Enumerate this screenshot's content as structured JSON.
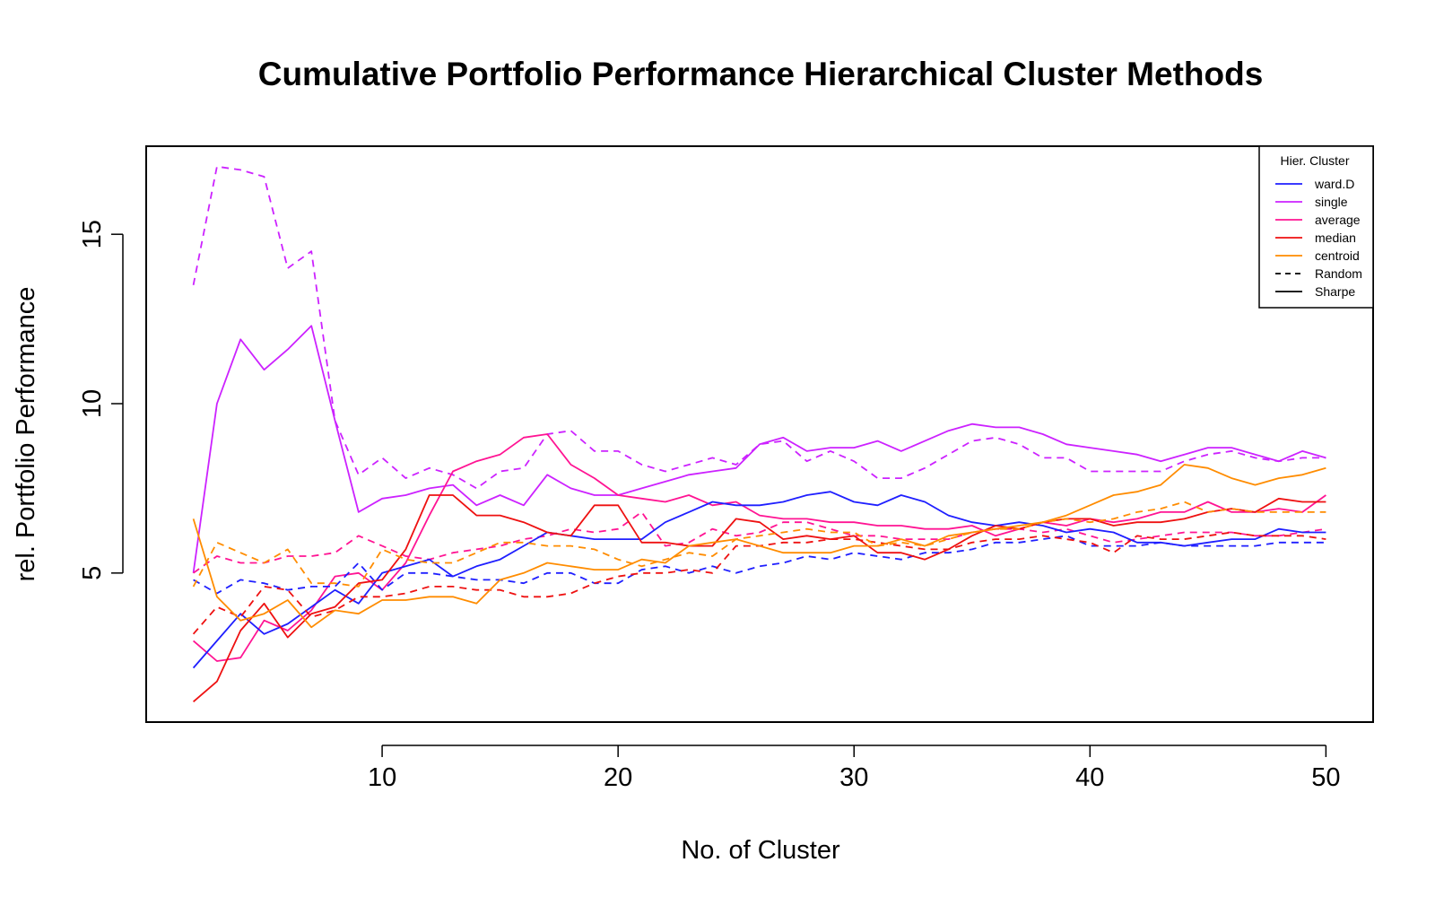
{
  "chart_data": {
    "type": "line",
    "title": "Cumulative Portfolio Performance Hierarchical Cluster Methods",
    "xlabel": "No. of Cluster",
    "ylabel": "rel. Portfolio Performance",
    "xlim": [
      0,
      52
    ],
    "ylim": [
      0.6,
      17.6
    ],
    "xticks": [
      10,
      20,
      30,
      40,
      50
    ],
    "yticks": [
      5,
      10,
      15
    ],
    "grid": false,
    "legend": {
      "title": "Hier. Cluster",
      "position": "top-right",
      "entries": [
        {
          "label": "ward.D",
          "color": "#1f1fff",
          "dash": "solid"
        },
        {
          "label": "single",
          "color": "#cc22ff",
          "dash": "solid"
        },
        {
          "label": "average",
          "color": "#ff1493",
          "dash": "solid"
        },
        {
          "label": "median",
          "color": "#ee1111",
          "dash": "solid"
        },
        {
          "label": "centroid",
          "color": "#ff8c00",
          "dash": "solid"
        },
        {
          "label": "Random",
          "color": "#000000",
          "dash": "dashed"
        },
        {
          "label": "Sharpe",
          "color": "#000000",
          "dash": "solid"
        }
      ]
    },
    "x": [
      2,
      3,
      4,
      5,
      6,
      7,
      8,
      9,
      10,
      11,
      12,
      13,
      14,
      15,
      16,
      17,
      18,
      19,
      20,
      21,
      22,
      23,
      24,
      25,
      26,
      27,
      28,
      29,
      30,
      31,
      32,
      33,
      34,
      35,
      36,
      37,
      38,
      39,
      40,
      41,
      42,
      43,
      44,
      45,
      46,
      47,
      48,
      49,
      50
    ],
    "series": [
      {
        "name": "single",
        "strategy": "Random",
        "color": "#cc22ff",
        "dash": "dashed",
        "values": [
          13.5,
          17.0,
          16.9,
          16.7,
          14.0,
          14.5,
          9.5,
          7.9,
          8.4,
          7.8,
          8.1,
          7.9,
          7.5,
          8.0,
          8.1,
          9.1,
          9.2,
          8.6,
          8.6,
          8.2,
          8.0,
          8.2,
          8.4,
          8.2,
          8.8,
          8.9,
          8.3,
          8.6,
          8.3,
          7.8,
          7.8,
          8.1,
          8.5,
          8.9,
          9.0,
          8.8,
          8.4,
          8.4,
          8.0,
          8.0,
          8.0,
          8.0,
          8.3,
          8.5,
          8.6,
          8.4,
          8.3,
          8.4,
          8.4
        ]
      },
      {
        "name": "single",
        "strategy": "Sharpe",
        "color": "#cc22ff",
        "dash": "solid",
        "values": [
          5.0,
          10.0,
          11.9,
          11.0,
          11.6,
          12.3,
          9.5,
          6.8,
          7.2,
          7.3,
          7.5,
          7.6,
          7.0,
          7.3,
          7.0,
          7.9,
          7.5,
          7.3,
          7.3,
          7.5,
          7.7,
          7.9,
          8.0,
          8.1,
          8.8,
          9.0,
          8.6,
          8.7,
          8.7,
          8.9,
          8.6,
          8.9,
          9.2,
          9.4,
          9.3,
          9.3,
          9.1,
          8.8,
          8.7,
          8.6,
          8.5,
          8.3,
          8.5,
          8.7,
          8.7,
          8.5,
          8.3,
          8.6,
          8.4
        ]
      },
      {
        "name": "average",
        "strategy": "Random",
        "color": "#ff1493",
        "dash": "dashed",
        "values": [
          5.0,
          5.5,
          5.3,
          5.3,
          5.5,
          5.5,
          5.6,
          6.1,
          5.8,
          5.5,
          5.4,
          5.6,
          5.7,
          5.8,
          6.0,
          6.1,
          6.3,
          6.2,
          6.3,
          6.8,
          5.8,
          5.9,
          6.3,
          6.1,
          6.2,
          6.5,
          6.5,
          6.3,
          6.1,
          6.1,
          6.0,
          6.0,
          6.0,
          6.2,
          6.3,
          6.3,
          6.2,
          6.3,
          6.1,
          5.9,
          6.0,
          6.1,
          6.2,
          6.2,
          6.2,
          6.1,
          6.1,
          6.2,
          6.3
        ]
      },
      {
        "name": "average",
        "strategy": "Sharpe",
        "color": "#ff1493",
        "dash": "solid",
        "values": [
          3.0,
          2.4,
          2.5,
          3.6,
          3.3,
          3.9,
          4.9,
          5.0,
          4.5,
          5.3,
          6.7,
          8.0,
          8.3,
          8.5,
          9.0,
          9.1,
          8.2,
          7.8,
          7.3,
          7.2,
          7.1,
          7.3,
          7.0,
          7.1,
          6.7,
          6.6,
          6.6,
          6.5,
          6.5,
          6.4,
          6.4,
          6.3,
          6.3,
          6.4,
          6.1,
          6.3,
          6.5,
          6.4,
          6.6,
          6.5,
          6.6,
          6.8,
          6.8,
          7.1,
          6.8,
          6.8,
          6.9,
          6.8,
          7.3
        ]
      },
      {
        "name": "ward.D",
        "strategy": "Random",
        "color": "#1f1fff",
        "dash": "dashed",
        "values": [
          4.8,
          4.4,
          4.8,
          4.7,
          4.5,
          4.6,
          4.6,
          5.3,
          4.5,
          5.0,
          5.0,
          4.9,
          4.8,
          4.8,
          4.7,
          5.0,
          5.0,
          4.7,
          4.7,
          5.1,
          5.2,
          5.0,
          5.2,
          5.0,
          5.2,
          5.3,
          5.5,
          5.4,
          5.6,
          5.5,
          5.4,
          5.6,
          5.6,
          5.7,
          5.9,
          5.9,
          6.0,
          6.1,
          5.8,
          5.8,
          5.8,
          5.9,
          5.8,
          5.8,
          5.8,
          5.8,
          5.9,
          5.9,
          5.9
        ]
      },
      {
        "name": "ward.D",
        "strategy": "Sharpe",
        "color": "#1f1fff",
        "dash": "solid",
        "values": [
          2.2,
          3.0,
          3.8,
          3.2,
          3.5,
          4.0,
          4.5,
          4.1,
          5.0,
          5.2,
          5.4,
          4.9,
          5.2,
          5.4,
          5.8,
          6.2,
          6.1,
          6.0,
          6.0,
          6.0,
          6.5,
          6.8,
          7.1,
          7.0,
          7.0,
          7.1,
          7.3,
          7.4,
          7.1,
          7.0,
          7.3,
          7.1,
          6.7,
          6.5,
          6.4,
          6.5,
          6.4,
          6.2,
          6.3,
          6.2,
          5.9,
          5.9,
          5.8,
          5.9,
          6.0,
          6.0,
          6.3,
          6.2,
          6.2
        ]
      },
      {
        "name": "median",
        "strategy": "Random",
        "color": "#ee1111",
        "dash": "dashed",
        "values": [
          3.2,
          4.0,
          3.7,
          4.6,
          4.5,
          3.7,
          3.9,
          4.3,
          4.3,
          4.4,
          4.6,
          4.6,
          4.5,
          4.5,
          4.3,
          4.3,
          4.4,
          4.7,
          4.9,
          5.0,
          5.0,
          5.1,
          5.0,
          5.8,
          5.8,
          5.9,
          5.9,
          6.0,
          6.0,
          5.9,
          5.8,
          5.7,
          5.7,
          5.9,
          6.0,
          6.0,
          6.1,
          6.0,
          5.9,
          5.6,
          6.1,
          6.0,
          6.0,
          6.1,
          6.2,
          6.1,
          6.1,
          6.1,
          6.0
        ]
      },
      {
        "name": "median",
        "strategy": "Sharpe",
        "color": "#ee1111",
        "dash": "solid",
        "values": [
          1.2,
          1.8,
          3.3,
          4.1,
          3.1,
          3.8,
          4.0,
          4.7,
          4.8,
          5.7,
          7.3,
          7.3,
          6.7,
          6.7,
          6.5,
          6.2,
          6.1,
          7.0,
          7.0,
          5.9,
          5.9,
          5.8,
          5.8,
          6.6,
          6.5,
          6.0,
          6.1,
          6.0,
          6.1,
          5.6,
          5.6,
          5.4,
          5.7,
          6.1,
          6.4,
          6.3,
          6.5,
          6.6,
          6.6,
          6.4,
          6.5,
          6.5,
          6.6,
          6.8,
          6.9,
          6.8,
          7.2,
          7.1,
          7.1
        ]
      },
      {
        "name": "centroid",
        "strategy": "Random",
        "color": "#ff8c00",
        "dash": "dashed",
        "values": [
          4.6,
          5.9,
          5.6,
          5.3,
          5.7,
          4.7,
          4.7,
          4.6,
          5.7,
          5.4,
          5.3,
          5.3,
          5.6,
          5.9,
          5.9,
          5.8,
          5.8,
          5.7,
          5.4,
          5.2,
          5.4,
          5.6,
          5.5,
          6.0,
          6.1,
          6.2,
          6.3,
          6.2,
          6.2,
          5.8,
          5.9,
          5.8,
          6.0,
          6.2,
          6.3,
          6.3,
          6.5,
          6.6,
          6.5,
          6.6,
          6.8,
          6.9,
          7.1,
          6.8,
          6.9,
          6.8,
          6.8,
          6.8,
          6.8
        ]
      },
      {
        "name": "centroid",
        "strategy": "Sharpe",
        "color": "#ff8c00",
        "dash": "solid",
        "values": [
          6.6,
          4.3,
          3.6,
          3.8,
          4.2,
          3.4,
          3.9,
          3.8,
          4.2,
          4.2,
          4.3,
          4.3,
          4.1,
          4.8,
          5.0,
          5.3,
          5.2,
          5.1,
          5.1,
          5.4,
          5.3,
          5.8,
          5.9,
          6.0,
          5.8,
          5.6,
          5.6,
          5.6,
          5.8,
          5.8,
          6.0,
          5.8,
          6.1,
          6.2,
          6.3,
          6.4,
          6.5,
          6.7,
          7.0,
          7.3,
          7.4,
          7.6,
          8.2,
          8.1,
          7.8,
          7.6,
          7.8,
          7.9,
          8.1
        ]
      }
    ]
  }
}
